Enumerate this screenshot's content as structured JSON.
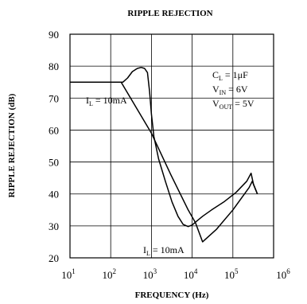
{
  "chart_data": {
    "type": "line",
    "title": "RIPPLE REJECTION",
    "xlabel": "FREQUENCY (Hz)",
    "ylabel": "RIPPLE REJECTION (dB)",
    "xscale": "log",
    "xlim": [
      10,
      1000000
    ],
    "ylim": [
      20,
      90
    ],
    "grid": true,
    "x_ticks": [
      {
        "value": 10,
        "base": "10",
        "exp": "1"
      },
      {
        "value": 100,
        "base": "10",
        "exp": "2"
      },
      {
        "value": 1000,
        "base": "10",
        "exp": "3"
      },
      {
        "value": 10000,
        "base": "10",
        "exp": "4"
      },
      {
        "value": 100000,
        "base": "10",
        "exp": "5"
      },
      {
        "value": 1000000,
        "base": "10",
        "exp": "6"
      }
    ],
    "y_ticks": [
      20,
      30,
      40,
      50,
      60,
      70,
      80,
      90
    ],
    "series": [
      {
        "points": [
          [
            10,
            75
          ],
          [
            200,
            75
          ],
          [
            260,
            76.3
          ],
          [
            340,
            78.3
          ],
          [
            450,
            79.3
          ],
          [
            560,
            79.6
          ],
          [
            680,
            79.3
          ],
          [
            800,
            78.0
          ],
          [
            900,
            72
          ],
          [
            1000,
            65
          ],
          [
            1150,
            58
          ],
          [
            1500,
            51
          ],
          [
            2200,
            44
          ],
          [
            3200,
            37.5
          ],
          [
            4500,
            33
          ],
          [
            6000,
            30.5
          ],
          [
            8000,
            29.8
          ],
          [
            10000,
            30.3
          ],
          [
            13000,
            31.5
          ],
          [
            18000,
            33
          ],
          [
            30000,
            35
          ],
          [
            60000,
            37.5
          ],
          [
            120000,
            40.5
          ],
          [
            220000,
            44
          ],
          [
            280000,
            46.5
          ],
          [
            320000,
            43
          ],
          [
            400000,
            40
          ]
        ]
      },
      {
        "points": [
          [
            10,
            75
          ],
          [
            180,
            75
          ],
          [
            1000,
            59
          ],
          [
            3000,
            46
          ],
          [
            8000,
            35
          ],
          [
            12000,
            31
          ],
          [
            18000,
            25
          ],
          [
            40000,
            29
          ],
          [
            100000,
            35
          ],
          [
            250000,
            42
          ],
          [
            300000,
            44
          ],
          [
            400000,
            40
          ]
        ]
      }
    ],
    "annotations": {
      "il_upper": {
        "prefix": "I",
        "sub": "L",
        "text": " = 10mA"
      },
      "il_lower": {
        "prefix": "I",
        "sub": "L",
        "text": " = 10mA"
      },
      "cl": {
        "prefix": "C",
        "sub": "L",
        "text": " = 1μF"
      },
      "vin": {
        "prefix": "V",
        "sub": "IN",
        "text": " = 6V"
      },
      "vout": {
        "prefix": "V",
        "sub": "OUT",
        "text": " = 5V"
      }
    }
  }
}
